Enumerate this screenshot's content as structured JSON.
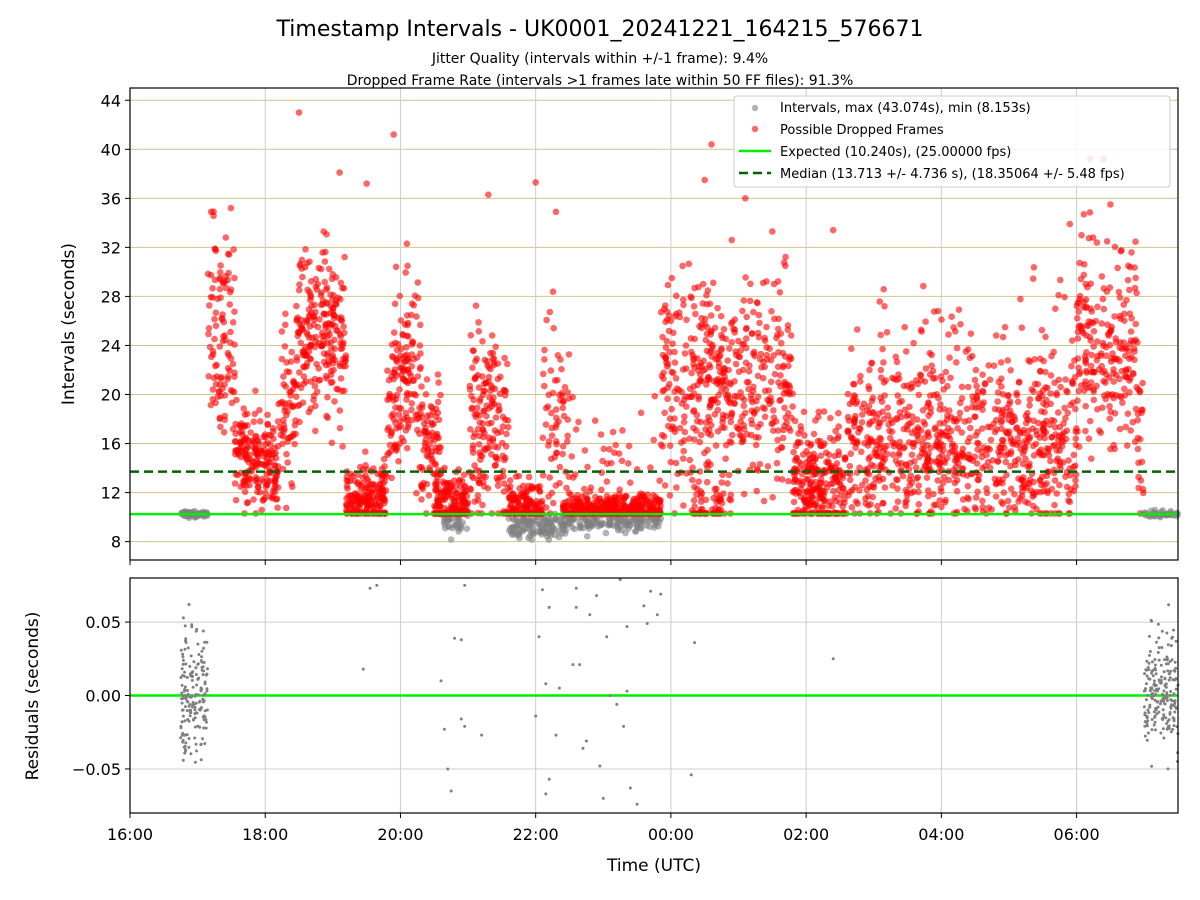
{
  "chart_data": [
    {
      "type": "scatter",
      "title": "Timestamp Intervals - UK0001_20241221_164215_576671",
      "subtitle_lines": [
        "Jitter Quality (intervals within +/-1 frame): 9.4%",
        "Dropped Frame Rate (intervals >1 frames late within 50 FF files): 91.3%"
      ],
      "ylabel": "Intervals (seconds)",
      "ylim": [
        6.5,
        45
      ],
      "yticks": [
        8,
        12,
        16,
        20,
        24,
        28,
        32,
        36,
        40,
        44
      ],
      "xlim_hours": [
        16.0,
        31.5
      ],
      "grid": "on",
      "legend_placement": "top-right",
      "legend": [
        "Intervals, max (43.074s), min (8.153s)",
        "Possible Dropped Frames",
        "Expected (10.240s), (25.00000 fps)",
        "Median (13.713 +/- 4.736 s), (18.35064 +/- 5.48 fps)"
      ],
      "colors": {
        "intervals": "#808080",
        "dropped": "#ff0000",
        "expected": "#00ee00",
        "median": "#006400",
        "hgrid": "#d4c48a",
        "vgrid": "#cccccc"
      },
      "expected_interval": 10.24,
      "median_interval": 13.713,
      "max_interval": 43.074,
      "min_interval": 8.153,
      "segments": [
        {
          "start": 16.75,
          "end": 17.15,
          "level": 10.24,
          "spread": 0.15,
          "n": 60,
          "dropped": false
        },
        {
          "start": 17.15,
          "end": 17.55,
          "level": 24.0,
          "spread": 5.0,
          "n": 100,
          "dropped": true
        },
        {
          "start": 17.55,
          "end": 18.2,
          "level": 15.0,
          "spread": 2.0,
          "n": 200,
          "dropped": true
        },
        {
          "start": 18.2,
          "end": 18.5,
          "level": 20.0,
          "spread": 4.0,
          "n": 70,
          "dropped": true
        },
        {
          "start": 18.5,
          "end": 19.2,
          "level": 25.0,
          "spread": 3.5,
          "n": 220,
          "dropped": true
        },
        {
          "start": 19.2,
          "end": 19.8,
          "level": 11.5,
          "spread": 1.4,
          "n": 180,
          "dropped": true
        },
        {
          "start": 19.8,
          "end": 20.3,
          "level": 21.0,
          "spread": 4.0,
          "n": 150,
          "dropped": true
        },
        {
          "start": 20.3,
          "end": 20.6,
          "level": 16.0,
          "spread": 3.0,
          "n": 80,
          "dropped": true
        },
        {
          "start": 20.5,
          "end": 21.0,
          "level": 11.0,
          "spread": 1.3,
          "n": 170,
          "dropped": true
        },
        {
          "start": 20.6,
          "end": 21.0,
          "level": 9.6,
          "spread": 0.5,
          "n": 40,
          "dropped": false
        },
        {
          "start": 21.0,
          "end": 21.6,
          "level": 18.0,
          "spread": 4.0,
          "n": 170,
          "dropped": true
        },
        {
          "start": 21.6,
          "end": 22.1,
          "level": 10.8,
          "spread": 0.9,
          "n": 150,
          "dropped": true
        },
        {
          "start": 21.6,
          "end": 22.4,
          "level": 9.2,
          "spread": 0.5,
          "n": 120,
          "dropped": false
        },
        {
          "start": 22.1,
          "end": 22.5,
          "level": 18.0,
          "spread": 4.5,
          "n": 70,
          "dropped": true
        },
        {
          "start": 22.4,
          "end": 23.85,
          "level": 10.6,
          "spread": 0.6,
          "n": 360,
          "dropped": true
        },
        {
          "start": 22.4,
          "end": 23.85,
          "level": 9.6,
          "spread": 0.4,
          "n": 160,
          "dropped": false
        },
        {
          "start": 22.5,
          "end": 23.85,
          "level": 14.0,
          "spread": 3.0,
          "n": 60,
          "dropped": true
        },
        {
          "start": 23.85,
          "end": 24.6,
          "level": 21.0,
          "spread": 4.0,
          "n": 170,
          "dropped": true
        },
        {
          "start": 24.3,
          "end": 24.9,
          "level": 11.0,
          "spread": 1.2,
          "n": 60,
          "dropped": true
        },
        {
          "start": 24.5,
          "end": 25.8,
          "level": 20.5,
          "spread": 4.0,
          "n": 300,
          "dropped": true
        },
        {
          "start": 25.8,
          "end": 26.6,
          "level": 13.0,
          "spread": 2.5,
          "n": 260,
          "dropped": true
        },
        {
          "start": 26.6,
          "end": 30.0,
          "level": 15.5,
          "spread": 3.0,
          "n": 700,
          "dropped": true
        },
        {
          "start": 26.6,
          "end": 30.0,
          "level": 21.0,
          "spread": 3.5,
          "n": 160,
          "dropped": true
        },
        {
          "start": 30.0,
          "end": 30.9,
          "level": 24.0,
          "spread": 4.0,
          "n": 220,
          "dropped": true
        },
        {
          "start": 30.9,
          "end": 31.0,
          "level": 16.0,
          "spread": 3.0,
          "n": 20,
          "dropped": true
        },
        {
          "start": 31.0,
          "end": 31.5,
          "level": 10.24,
          "spread": 0.15,
          "n": 40,
          "dropped": false
        }
      ],
      "outliers": [
        {
          "t": 18.5,
          "y": 43.0
        },
        {
          "t": 19.9,
          "y": 41.2
        },
        {
          "t": 19.5,
          "y": 37.2
        },
        {
          "t": 22.0,
          "y": 37.3
        },
        {
          "t": 22.3,
          "y": 34.9
        },
        {
          "t": 24.6,
          "y": 40.4
        },
        {
          "t": 24.5,
          "y": 37.5
        },
        {
          "t": 25.1,
          "y": 36.0
        },
        {
          "t": 30.2,
          "y": 39.2
        },
        {
          "t": 30.4,
          "y": 39.2
        },
        {
          "t": 17.2,
          "y": 34.9
        },
        {
          "t": 21.3,
          "y": 36.3
        },
        {
          "t": 19.1,
          "y": 38.1
        },
        {
          "t": 29.9,
          "y": 33.9
        },
        {
          "t": 30.5,
          "y": 35.5
        },
        {
          "t": 25.5,
          "y": 33.3
        },
        {
          "t": 26.4,
          "y": 33.4
        },
        {
          "t": 24.9,
          "y": 32.6
        }
      ]
    },
    {
      "type": "scatter",
      "ylabel": "Residuals (seconds)",
      "xlabel": "Time (UTC)",
      "ylim": [
        -0.08,
        0.08
      ],
      "yticks": [
        -0.05,
        0.0,
        0.05
      ],
      "ytick_labels": [
        "−0.05",
        "0.00",
        "0.05"
      ],
      "xlim_hours": [
        16.0,
        31.5
      ],
      "xticks_hours": [
        16,
        18,
        20,
        22,
        24,
        26,
        28,
        30
      ],
      "xtick_labels": [
        "16:00",
        "18:00",
        "20:00",
        "22:00",
        "00:00",
        "02:00",
        "04:00",
        "06:00"
      ],
      "grid": "on",
      "zero_line_color": "#00ee00",
      "point_color": "#808080",
      "clusters": [
        {
          "start": 16.75,
          "end": 17.15,
          "spread": 0.035,
          "n": 180
        },
        {
          "start": 31.0,
          "end": 31.5,
          "spread": 0.035,
          "n": 200
        }
      ],
      "sparse_range": [
        19.4,
        27.5
      ],
      "sparse_points": [
        {
          "t": 19.45,
          "y": 0.018
        },
        {
          "t": 19.55,
          "y": 0.073
        },
        {
          "t": 19.65,
          "y": 0.075
        },
        {
          "t": 20.6,
          "y": 0.01
        },
        {
          "t": 20.65,
          "y": -0.023
        },
        {
          "t": 20.7,
          "y": -0.05
        },
        {
          "t": 20.75,
          "y": -0.065
        },
        {
          "t": 20.8,
          "y": 0.039
        },
        {
          "t": 20.9,
          "y": 0.038
        },
        {
          "t": 20.95,
          "y": 0.075
        },
        {
          "t": 20.9,
          "y": -0.016
        },
        {
          "t": 20.95,
          "y": -0.021
        },
        {
          "t": 21.2,
          "y": -0.027
        },
        {
          "t": 22.0,
          "y": -0.014
        },
        {
          "t": 22.1,
          "y": 0.072
        },
        {
          "t": 22.15,
          "y": 0.008
        },
        {
          "t": 22.2,
          "y": 0.06
        },
        {
          "t": 22.3,
          "y": -0.027
        },
        {
          "t": 22.35,
          "y": 0.005
        },
        {
          "t": 22.55,
          "y": 0.021
        },
        {
          "t": 22.6,
          "y": 0.06
        },
        {
          "t": 22.65,
          "y": 0.021
        },
        {
          "t": 22.7,
          "y": -0.036
        },
        {
          "t": 22.8,
          "y": 0.055
        },
        {
          "t": 22.9,
          "y": 0.068
        },
        {
          "t": 22.95,
          "y": -0.048
        },
        {
          "t": 23.0,
          "y": -0.07
        },
        {
          "t": 23.05,
          "y": 0.04
        },
        {
          "t": 23.1,
          "y": 0.0
        },
        {
          "t": 23.2,
          "y": -0.006
        },
        {
          "t": 23.25,
          "y": 0.079
        },
        {
          "t": 23.3,
          "y": -0.021
        },
        {
          "t": 23.35,
          "y": 0.047
        },
        {
          "t": 23.4,
          "y": -0.063
        },
        {
          "t": 23.5,
          "y": -0.074
        },
        {
          "t": 23.6,
          "y": 0.061
        },
        {
          "t": 23.65,
          "y": 0.049
        },
        {
          "t": 23.7,
          "y": 0.071
        },
        {
          "t": 23.8,
          "y": 0.055
        },
        {
          "t": 23.85,
          "y": 0.069
        },
        {
          "t": 24.35,
          "y": 0.036
        },
        {
          "t": 24.3,
          "y": -0.054
        },
        {
          "t": 26.4,
          "y": 0.025
        },
        {
          "t": 22.15,
          "y": -0.067
        },
        {
          "t": 22.2,
          "y": -0.057
        },
        {
          "t": 22.05,
          "y": 0.04
        },
        {
          "t": 22.6,
          "y": 0.073
        },
        {
          "t": 23.35,
          "y": 0.003
        },
        {
          "t": 22.75,
          "y": -0.031
        }
      ]
    }
  ]
}
